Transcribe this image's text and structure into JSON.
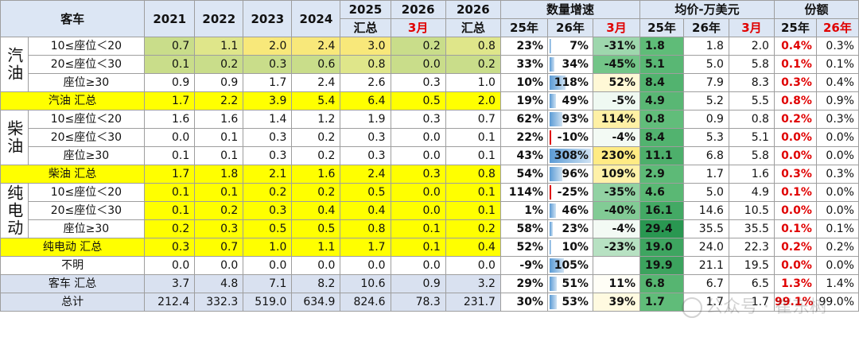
{
  "header": {
    "title": "客车",
    "years": [
      "2021",
      "2022",
      "2023",
      "2024"
    ],
    "y2025": "2025",
    "y2025_sub": "汇总",
    "y2026": "2026",
    "y2026_sub": "3月",
    "y2026b": "2026",
    "y2026b_sub": "汇总",
    "growth": "数量增速",
    "price": "均价-万美元",
    "share": "份额",
    "growth_cols": [
      "25年",
      "26年",
      "3月"
    ],
    "price_cols": [
      "25年",
      "26年",
      "3月"
    ],
    "share_cols": [
      "25年",
      "26年"
    ]
  },
  "categories": {
    "gasoline": "汽油",
    "diesel": "柴油",
    "electric": "纯电动"
  },
  "rows": [
    {
      "cat": "gasoline",
      "label": "10≤座位＜20",
      "vals": [
        "0.7",
        "1.1",
        "2.0",
        "2.4",
        "3.0",
        "0.2",
        "0.8"
      ],
      "g": [
        "23%",
        "7%",
        "-31%"
      ],
      "p": [
        "1.8",
        "1.8",
        "2.0"
      ],
      "s": [
        "0.4%",
        "0.3%"
      ],
      "gbar": 0.02
    },
    {
      "cat": "gasoline",
      "label": "20≤座位＜30",
      "vals": [
        "0.1",
        "0.2",
        "0.3",
        "0.6",
        "0.8",
        "0.0",
        "0.2"
      ],
      "g": [
        "33%",
        "34%",
        "-45%"
      ],
      "p": [
        "5.1",
        "5.0",
        "5.8"
      ],
      "s": [
        "0.1%",
        "0.1%"
      ],
      "gbar": 0.11
    },
    {
      "cat": "gasoline",
      "label": "座位≥30",
      "vals": [
        "0.9",
        "0.9",
        "1.7",
        "2.4",
        "2.6",
        "0.3",
        "1.0"
      ],
      "g": [
        "10%",
        "118%",
        "52%"
      ],
      "p": [
        "8.4",
        "7.9",
        "8.3"
      ],
      "s": [
        "0.3%",
        "0.4%"
      ],
      "gbar": 0.38
    },
    {
      "label": "汽油 汇总",
      "total": true,
      "vals": [
        "1.7",
        "2.2",
        "3.9",
        "5.4",
        "6.4",
        "0.5",
        "2.0"
      ],
      "g": [
        "19%",
        "49%",
        "-5%"
      ],
      "p": [
        "4.9",
        "5.2",
        "5.5"
      ],
      "s": [
        "0.8%",
        "0.9%"
      ],
      "gbar": 0.16
    },
    {
      "cat": "diesel",
      "label": "10≤座位＜20",
      "vals": [
        "1.6",
        "1.6",
        "1.4",
        "1.2",
        "1.9",
        "0.3",
        "0.7"
      ],
      "g": [
        "62%",
        "93%",
        "114%"
      ],
      "p": [
        "0.8",
        "0.9",
        "0.8"
      ],
      "s": [
        "0.2%",
        "0.3%"
      ],
      "gbar": 0.3
    },
    {
      "cat": "diesel",
      "label": "20≤座位＜30",
      "vals": [
        "0.0",
        "0.1",
        "0.3",
        "0.2",
        "0.3",
        "0.0",
        "0.1"
      ],
      "g": [
        "22%",
        "-10%",
        "-4%"
      ],
      "p": [
        "8.4",
        "5.3",
        "5.1"
      ],
      "s": [
        "0.0%",
        "0.0%"
      ],
      "gbar": -0.03
    },
    {
      "cat": "diesel",
      "label": "座位≥30",
      "vals": [
        "0.1",
        "0.1",
        "0.3",
        "0.2",
        "0.3",
        "0.0",
        "0.1"
      ],
      "g": [
        "43%",
        "308%",
        "230%"
      ],
      "p": [
        "11.1",
        "6.8",
        "5.8"
      ],
      "s": [
        "0.0%",
        "0.0%"
      ],
      "gbar": 1.0
    },
    {
      "label": "柴油 汇总",
      "total": true,
      "vals": [
        "1.7",
        "1.8",
        "2.1",
        "1.6",
        "2.4",
        "0.3",
        "0.8"
      ],
      "g": [
        "54%",
        "96%",
        "109%"
      ],
      "p": [
        "2.9",
        "1.7",
        "1.6"
      ],
      "s": [
        "0.3%",
        "0.3%"
      ],
      "gbar": 0.31
    },
    {
      "cat": "electric",
      "label": "10≤座位＜20",
      "vals": [
        "0.1",
        "0.1",
        "0.2",
        "0.2",
        "0.5",
        "0.0",
        "0.1"
      ],
      "g": [
        "114%",
        "-25%",
        "-35%"
      ],
      "p": [
        "4.6",
        "5.0",
        "4.9"
      ],
      "s": [
        "0.1%",
        "0.0%"
      ],
      "gbar": -0.08
    },
    {
      "cat": "electric",
      "label": "20≤座位＜30",
      "vals": [
        "0.1",
        "0.2",
        "0.3",
        "0.4",
        "0.4",
        "0.0",
        "0.1"
      ],
      "g": [
        "1%",
        "46%",
        "-40%"
      ],
      "p": [
        "16.1",
        "14.6",
        "10.5"
      ],
      "s": [
        "0.0%",
        "0.0%"
      ],
      "gbar": 0.15
    },
    {
      "cat": "electric",
      "label": "座位≥30",
      "vals": [
        "0.2",
        "0.3",
        "0.5",
        "0.5",
        "0.8",
        "0.1",
        "0.2"
      ],
      "g": [
        "58%",
        "23%",
        "-4%"
      ],
      "p": [
        "29.4",
        "35.5",
        "35.5"
      ],
      "s": [
        "0.1%",
        "0.1%"
      ],
      "gbar": 0.07
    },
    {
      "label": "纯电动 汇总",
      "total": true,
      "vals": [
        "0.3",
        "0.7",
        "1.0",
        "1.1",
        "1.7",
        "0.1",
        "0.4"
      ],
      "g": [
        "52%",
        "10%",
        "-23%"
      ],
      "p": [
        "19.0",
        "24.0",
        "22.3"
      ],
      "s": [
        "0.2%",
        "0.2%"
      ],
      "gbar": 0.03
    },
    {
      "label": "不明",
      "plain": true,
      "vals": [
        "0.0",
        "0.0",
        "0.0",
        "0.0",
        "0.0",
        "0.0",
        "0.0"
      ],
      "g": [
        "-9%",
        "105%",
        ""
      ],
      "p": [
        "19.9",
        "21.1",
        "19.5"
      ],
      "s": [
        "0.0%",
        "0.0%"
      ],
      "gbar": 0.34
    },
    {
      "label": "客车 汇总",
      "grand": true,
      "vals": [
        "3.7",
        "4.8",
        "7.1",
        "8.2",
        "10.6",
        "0.9",
        "3.2"
      ],
      "g": [
        "29%",
        "51%",
        "11%"
      ],
      "p": [
        "6.8",
        "6.7",
        "6.5"
      ],
      "s": [
        "1.3%",
        "1.4%"
      ],
      "gbar": 0.17
    },
    {
      "label": "总计",
      "grand": true,
      "vals": [
        "212.4",
        "332.3",
        "519.0",
        "634.9",
        "824.6",
        "78.3",
        "231.7"
      ],
      "g": [
        "30%",
        "53%",
        "39%"
      ],
      "p": [
        "1.7",
        "1.7",
        "1.7"
      ],
      "s": [
        "99.1%",
        "99.0%"
      ],
      "gbar": 0.17
    }
  ],
  "watermark": "公众号 · 崔东树"
}
